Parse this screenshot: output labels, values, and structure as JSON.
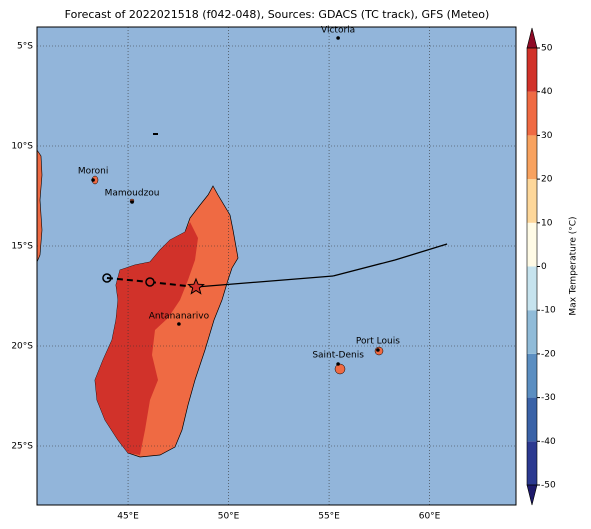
{
  "chart_data": {
    "type": "map",
    "title": "Forecast of 2022021518 (f042-048), Sources: GDACS (TC track), GFS (Meteo)",
    "xlim": [
      40.47,
      64.3
    ],
    "ylim": [
      -27.95,
      -4.05
    ],
    "xticks": [
      {
        "value": 45,
        "label": "45°E"
      },
      {
        "value": 50,
        "label": "50°E"
      },
      {
        "value": 55,
        "label": "55°E"
      },
      {
        "value": 60,
        "label": "60°E"
      }
    ],
    "yticks": [
      {
        "value": -5,
        "label": "5°S"
      },
      {
        "value": -10,
        "label": "10°S"
      },
      {
        "value": -15,
        "label": "15°S"
      },
      {
        "value": -20,
        "label": "20°S"
      },
      {
        "value": -25,
        "label": "25°S"
      }
    ],
    "grid": true,
    "cities": [
      {
        "name": "Victoria",
        "lon": 55.45,
        "lat": -4.6
      },
      {
        "name": "Moroni",
        "lon": 43.26,
        "lat": -11.7
      },
      {
        "name": "Mamoudzou",
        "lon": 45.2,
        "lat": -12.8
      },
      {
        "name": "Antananarivo",
        "lon": 47.53,
        "lat": -18.9
      },
      {
        "name": "Port Louis",
        "lon": 57.43,
        "lat": -20.2
      },
      {
        "name": "Saint-Denis",
        "lon": 55.45,
        "lat": -20.9
      }
    ],
    "track": {
      "lon": [
        43.95,
        46.09,
        48.38,
        55.2,
        58.28,
        60.87
      ],
      "lat": [
        -16.6,
        -16.8,
        -17.05,
        -16.5,
        -15.7,
        -14.9
      ],
      "color": "#000000"
    },
    "colorbar": {
      "label": "Max Temperature (°C)",
      "lim": [
        -50,
        50
      ],
      "ticks": [
        -50,
        -40,
        -30,
        -20,
        -10,
        0,
        10,
        20,
        30,
        40,
        50
      ],
      "colors": [
        "#2b3990",
        "#3a62a7",
        "#5b8ec1",
        "#90bbd8",
        "#c6e3ee",
        "#fffbe6",
        "#fdd79a",
        "#f8a25f",
        "#ef6a43",
        "#d1322a"
      ],
      "under": "#1d1a6b",
      "over": "#8e0b26"
    }
  }
}
